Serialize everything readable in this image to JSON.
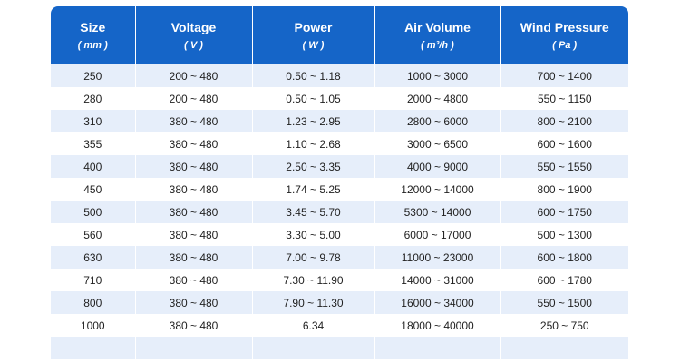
{
  "table": {
    "headers": [
      {
        "title": "Size",
        "unit": "( mm )"
      },
      {
        "title": "Voltage",
        "unit": "( V )"
      },
      {
        "title": "Power",
        "unit": "( W )"
      },
      {
        "title": "Air Volume",
        "unit": "( m³/h )"
      },
      {
        "title": "Wind Pressure",
        "unit": "( Pa )"
      }
    ],
    "rows": [
      [
        "250",
        "200 ~ 480",
        "0.50 ~ 1.18",
        "1000 ~ 3000",
        "700 ~ 1400"
      ],
      [
        "280",
        "200 ~ 480",
        "0.50 ~ 1.05",
        "2000 ~ 4800",
        "550 ~ 1150"
      ],
      [
        "310",
        "380 ~ 480",
        "1.23 ~ 2.95",
        "2800 ~ 6000",
        "800 ~ 2100"
      ],
      [
        "355",
        "380 ~ 480",
        "1.10 ~ 2.68",
        "3000 ~ 6500",
        "600 ~ 1600"
      ],
      [
        "400",
        "380 ~ 480",
        "2.50 ~ 3.35",
        "4000 ~ 9000",
        "550 ~ 1550"
      ],
      [
        "450",
        "380 ~ 480",
        "1.74 ~ 5.25",
        "12000 ~ 14000",
        "800 ~ 1900"
      ],
      [
        "500",
        "380 ~ 480",
        "3.45 ~ 5.70",
        "5300 ~ 14000",
        "600 ~ 1750"
      ],
      [
        "560",
        "380 ~ 480",
        "3.30 ~ 5.00",
        "6000 ~ 17000",
        "500 ~ 1300"
      ],
      [
        "630",
        "380 ~ 480",
        "7.00 ~ 9.78",
        "11000 ~ 23000",
        "600 ~ 1800"
      ],
      [
        "710",
        "380 ~ 480",
        "7.30 ~ 11.90",
        "14000 ~ 31000",
        "600 ~ 1780"
      ],
      [
        "800",
        "380 ~ 480",
        "7.90 ~ 11.30",
        "16000 ~ 34000",
        "550 ~ 1500"
      ],
      [
        "1000",
        "380 ~ 480",
        "6.34",
        "18000 ~ 40000",
        "250 ~ 750"
      ]
    ]
  },
  "colors": {
    "header_bg": "#1565c8",
    "row_alt_bg": "#e6eefa",
    "row_bg": "#ffffff"
  }
}
